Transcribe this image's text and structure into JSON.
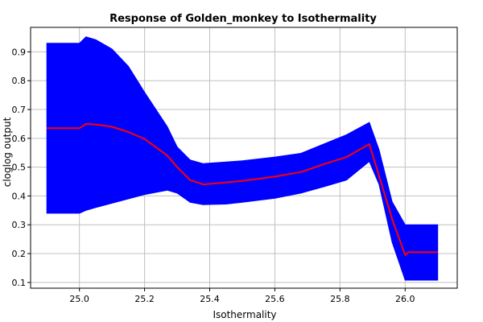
{
  "chart_data": {
    "type": "line",
    "title": "Response of Golden_monkey to Isothermality",
    "xlabel": "Isothermality",
    "ylabel": "cloglog output",
    "xlim": [
      24.85,
      26.16
    ],
    "ylim": [
      0.08,
      0.985
    ],
    "grid": true,
    "x_ticks": [
      {
        "value": 25.0,
        "label": "25.0"
      },
      {
        "value": 25.2,
        "label": "25.2"
      },
      {
        "value": 25.4,
        "label": "25.4"
      },
      {
        "value": 25.6,
        "label": "25.6"
      },
      {
        "value": 25.8,
        "label": "25.8"
      },
      {
        "value": 26.0,
        "label": "26.0"
      }
    ],
    "y_ticks": [
      {
        "value": 0.1,
        "label": "0.1"
      },
      {
        "value": 0.2,
        "label": "0.2"
      },
      {
        "value": 0.3,
        "label": "0.3"
      },
      {
        "value": 0.4,
        "label": "0.4"
      },
      {
        "value": 0.5,
        "label": "0.5"
      },
      {
        "value": 0.6,
        "label": "0.6"
      },
      {
        "value": 0.7,
        "label": "0.7"
      },
      {
        "value": 0.8,
        "label": "0.8"
      },
      {
        "value": 0.9,
        "label": "0.9"
      }
    ],
    "series": [
      {
        "role": "mean",
        "color": "#ff0000",
        "x": [
          24.9,
          25.0,
          25.02,
          25.05,
          25.1,
          25.15,
          25.2,
          25.27,
          25.3,
          25.34,
          25.38,
          25.45,
          25.5,
          25.6,
          25.68,
          25.75,
          25.82,
          25.89,
          25.92,
          25.96,
          26.0,
          26.01,
          26.1
        ],
        "y": [
          0.635,
          0.635,
          0.65,
          0.648,
          0.64,
          0.622,
          0.598,
          0.54,
          0.5,
          0.455,
          0.44,
          0.447,
          0.452,
          0.467,
          0.483,
          0.51,
          0.535,
          0.58,
          0.47,
          0.32,
          0.195,
          0.205,
          0.205
        ]
      }
    ],
    "band": {
      "color": "#0000ff",
      "x": [
        24.9,
        25.0,
        25.02,
        25.05,
        25.1,
        25.15,
        25.2,
        25.27,
        25.3,
        25.34,
        25.38,
        25.45,
        25.5,
        25.6,
        25.68,
        25.75,
        25.82,
        25.89,
        25.92,
        25.96,
        26.0,
        26.01,
        26.1
      ],
      "upper": [
        0.93,
        0.93,
        0.952,
        0.942,
        0.91,
        0.85,
        0.76,
        0.64,
        0.57,
        0.525,
        0.512,
        0.518,
        0.522,
        0.535,
        0.548,
        0.58,
        0.612,
        0.655,
        0.56,
        0.38,
        0.3,
        0.3,
        0.3
      ],
      "lower": [
        0.34,
        0.34,
        0.35,
        0.36,
        0.375,
        0.39,
        0.405,
        0.42,
        0.41,
        0.378,
        0.37,
        0.372,
        0.378,
        0.392,
        0.41,
        0.432,
        0.455,
        0.52,
        0.44,
        0.24,
        0.108,
        0.108,
        0.108
      ]
    }
  }
}
